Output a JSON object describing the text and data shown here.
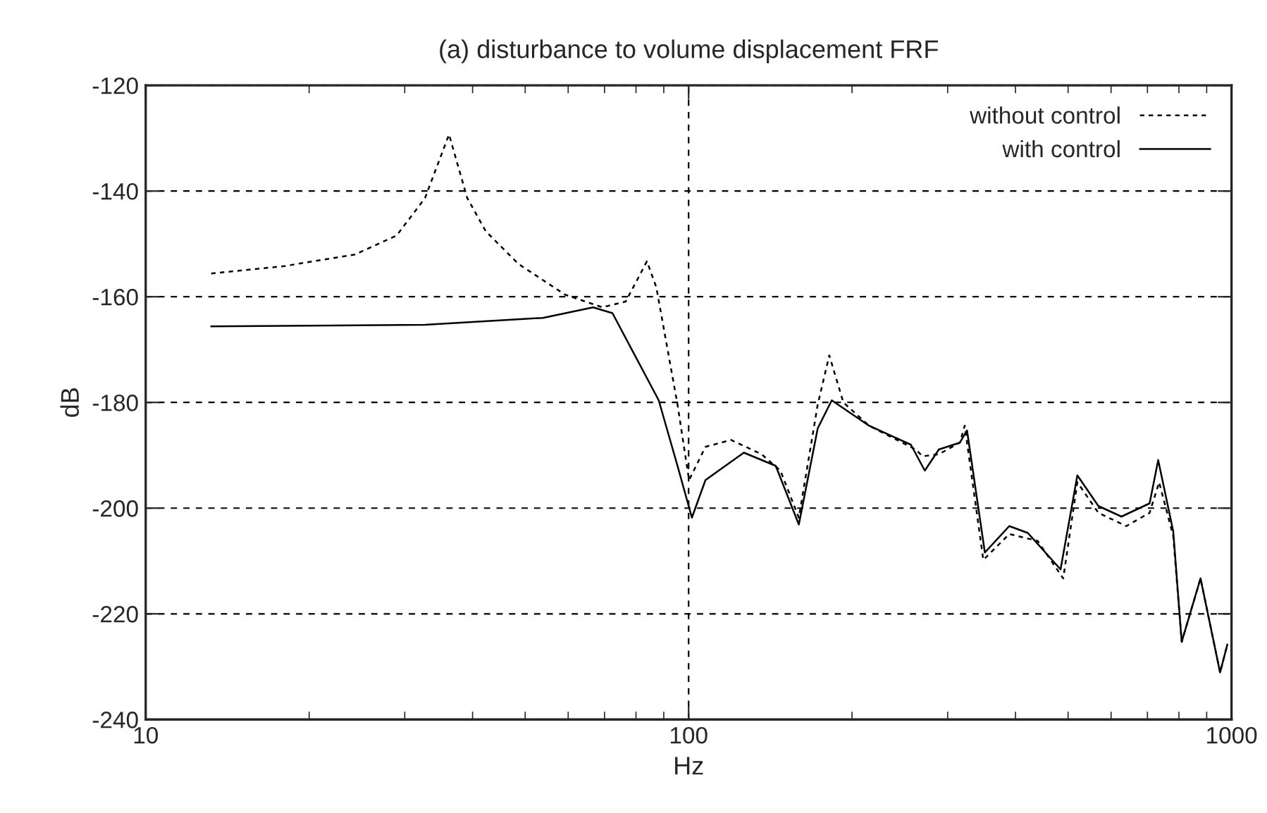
{
  "chart_data": {
    "type": "line",
    "title": "(a) disturbance to volume displacement FRF",
    "xlabel": "Hz",
    "ylabel": "dB",
    "log": "x",
    "xlim": [
      10,
      1000
    ],
    "xticks": [
      10,
      100,
      1000
    ],
    "ylim": [
      -240,
      -120
    ],
    "yticks": [
      -240,
      -220,
      -200,
      -180,
      -160,
      -140,
      -120
    ],
    "grid": true,
    "legend": "top right",
    "series": [
      {
        "name": "without control",
        "color": "#000000",
        "line_style": "dotted",
        "x": [
          13.2,
          18.0,
          24.3,
          29.0,
          32.7,
          36.2,
          39.1,
          42.3,
          48.6,
          59.2,
          69.4,
          76.6,
          83.8,
          87.2,
          95.4,
          100.2,
          107.4,
          119.7,
          136.3,
          147.6,
          159.6,
          172.9,
          181.6,
          192.8,
          214.9,
          261.9,
          269.8,
          289,
          316,
          322.5,
          349,
          389.6,
          439.3,
          489.8,
          520,
          568.6,
          640,
          706.5,
          735.6,
          781,
          809.5,
          876.8,
          952.7,
          982.4
        ],
        "values": [
          -155.6,
          -154.2,
          -152.0,
          -148.4,
          -141.3,
          -129.3,
          -141.3,
          -147.6,
          -153.8,
          -159.6,
          -162,
          -160.9,
          -153.3,
          -158.2,
          -180.4,
          -194.7,
          -188.4,
          -187.1,
          -189.8,
          -192.9,
          -201.8,
          -180.4,
          -171.1,
          -180,
          -184.4,
          -188.9,
          -190.2,
          -189.8,
          -187.6,
          -184.4,
          -209.8,
          -204.9,
          -206.2,
          -213.3,
          -195.1,
          -200.9,
          -203.4,
          -200.9,
          -195.1,
          -205.3,
          -225.3,
          -213.3,
          -231.1,
          -225.8
        ]
      },
      {
        "name": "with control",
        "color": "#000000",
        "line_style": "solid",
        "x": [
          13.2,
          32.7,
          53.9,
          66.7,
          72.4,
          88.1,
          95.4,
          101.4,
          107.4,
          126.4,
          144.7,
          159.6,
          172.9,
          183.5,
          214.9,
          256.7,
          272.3,
          289,
          316,
          325.7,
          351.3,
          389.6,
          421.5,
          484.3,
          520,
          568.6,
          627,
          706.5,
          732.7,
          781,
          809.5,
          876.8,
          952.7,
          982.4
        ],
        "values": [
          -165.6,
          -165.3,
          -164,
          -162,
          -163.1,
          -179.6,
          -192,
          -201.8,
          -194.7,
          -189.5,
          -192,
          -203.1,
          -184.9,
          -179.6,
          -184.4,
          -188,
          -192.9,
          -188.9,
          -187.6,
          -185.3,
          -208.4,
          -203.4,
          -204.7,
          -211.6,
          -193.8,
          -199.6,
          -201.6,
          -199.1,
          -190.9,
          -204.4,
          -225.3,
          -213.3,
          -231.1,
          -225.8
        ]
      }
    ]
  }
}
